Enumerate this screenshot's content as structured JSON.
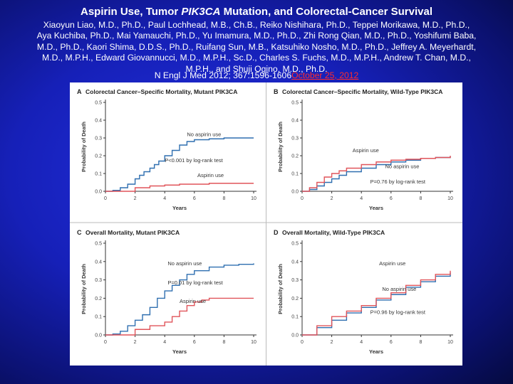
{
  "header": {
    "title_part1": "Aspirin Use, Tumor ",
    "title_gene": "PIK3CA",
    "title_part2": " Mutation, and Colorectal-Cancer Survival",
    "authors": "Xiaoyun Liao, M.D., Ph.D., Paul Lochhead, M.B., Ch.B., Reiko Nishihara, Ph.D., Teppei Morikawa, M.D., Ph.D., Aya Kuchiba, Ph.D., Mai Yamauchi, Ph.D., Yu Imamura, M.D., Ph.D., Zhi Rong Qian, M.D., Ph.D., Yoshifumi Baba, M.D., Ph.D., Kaori Shima, D.D.S., Ph.D., Ruifang Sun, M.B., Katsuhiko Nosho, M.D., Ph.D., Jeffrey A. Meyerhardt, M.D., M.P.H., Edward Giovannucci, M.D., M.P.H., Sc.D., Charles S. Fuchs, M.D., M.P.H., Andrew T. Chan, M.D., M.P.H., and Shuji Ogino, M.D., Ph.D.",
    "citation": "N Engl J Med 2012; 367:1596-1606",
    "citation_date": "October 25, 2012"
  },
  "colors": {
    "no_aspirin": "#2f6fb0",
    "aspirin": "#e0545a",
    "axis": "#333333",
    "title_text": "#ffffff",
    "link": "#ff2b2b"
  },
  "chart_data": [
    {
      "type": "line",
      "letter": "A",
      "title": "Colorectal Cancer–Specific Mortality, Mutant PIK3CA",
      "xlabel": "Years",
      "ylabel": "Probability of Death",
      "xlim": [
        0,
        10
      ],
      "ylim": [
        0,
        0.5
      ],
      "xticks": [
        0,
        2,
        4,
        6,
        8,
        10
      ],
      "yticks": [
        0.0,
        0.1,
        0.2,
        0.3,
        0.4,
        0.5
      ],
      "series": [
        {
          "name": "No aspirin use",
          "x": [
            0,
            0.5,
            1,
            1.5,
            2,
            2.3,
            2.6,
            3,
            3.3,
            3.6,
            4,
            4.5,
            5,
            5.5,
            6,
            7,
            8,
            9,
            10
          ],
          "y": [
            0,
            0.005,
            0.02,
            0.04,
            0.07,
            0.09,
            0.11,
            0.13,
            0.15,
            0.17,
            0.2,
            0.23,
            0.26,
            0.28,
            0.29,
            0.295,
            0.3,
            0.3,
            0.3
          ]
        },
        {
          "name": "Aspirin use",
          "x": [
            0,
            1,
            1.8,
            2,
            3,
            4,
            5,
            6,
            7,
            8,
            9,
            10
          ],
          "y": [
            0,
            0,
            0,
            0.02,
            0.03,
            0.035,
            0.04,
            0.04,
            0.045,
            0.045,
            0.045,
            0.045
          ]
        }
      ],
      "annotations": [
        "No aspirin use",
        "P<0.001 by log-rank test",
        "Aspirin use"
      ]
    },
    {
      "type": "line",
      "letter": "B",
      "title": "Colorectal Cancer–Specific Mortality, Wild-Type PIK3CA",
      "xlabel": "Years",
      "ylabel": "Probability of Death",
      "xlim": [
        0,
        10
      ],
      "ylim": [
        0,
        0.5
      ],
      "xticks": [
        0,
        2,
        4,
        6,
        8,
        10
      ],
      "yticks": [
        0.0,
        0.1,
        0.2,
        0.3,
        0.4,
        0.5
      ],
      "series": [
        {
          "name": "No aspirin use",
          "x": [
            0,
            0.5,
            1,
            1.5,
            2,
            2.5,
            3,
            4,
            5,
            6,
            7,
            8,
            9,
            10
          ],
          "y": [
            0,
            0.01,
            0.03,
            0.05,
            0.07,
            0.09,
            0.11,
            0.13,
            0.15,
            0.165,
            0.175,
            0.185,
            0.19,
            0.195
          ]
        },
        {
          "name": "Aspirin use",
          "x": [
            0,
            0.5,
            1,
            1.5,
            2,
            2.5,
            3,
            4,
            5,
            6,
            7,
            8,
            9,
            10
          ],
          "y": [
            0,
            0.02,
            0.05,
            0.08,
            0.1,
            0.115,
            0.13,
            0.15,
            0.165,
            0.175,
            0.18,
            0.185,
            0.19,
            0.2
          ]
        }
      ],
      "annotations": [
        "Aspirin use",
        "No aspirin use",
        "P=0.76 by log-rank test"
      ]
    },
    {
      "type": "line",
      "letter": "C",
      "title": "Overall Mortality, Mutant PIK3CA",
      "xlabel": "Years",
      "ylabel": "Probability of Death",
      "xlim": [
        0,
        10
      ],
      "ylim": [
        0,
        0.5
      ],
      "xticks": [
        0,
        2,
        4,
        6,
        8,
        10
      ],
      "yticks": [
        0.0,
        0.1,
        0.2,
        0.3,
        0.4,
        0.5
      ],
      "series": [
        {
          "name": "No aspirin use",
          "x": [
            0,
            0.5,
            1,
            1.5,
            2,
            2.5,
            3,
            3.5,
            4,
            4.5,
            5,
            5.5,
            6,
            7,
            8,
            9,
            10
          ],
          "y": [
            0,
            0.005,
            0.02,
            0.05,
            0.08,
            0.11,
            0.15,
            0.2,
            0.24,
            0.27,
            0.3,
            0.33,
            0.35,
            0.37,
            0.38,
            0.385,
            0.39
          ]
        },
        {
          "name": "Aspirin use",
          "x": [
            0,
            1,
            2,
            3,
            4,
            4.5,
            5,
            5.5,
            6,
            6.5,
            7,
            8,
            9,
            10
          ],
          "y": [
            0,
            0,
            0.03,
            0.05,
            0.07,
            0.1,
            0.13,
            0.16,
            0.18,
            0.19,
            0.2,
            0.2,
            0.2,
            0.2
          ]
        }
      ],
      "annotations": [
        "No aspirin use",
        "P=0.01 by log-rank test",
        "Aspirin use"
      ]
    },
    {
      "type": "line",
      "letter": "D",
      "title": "Overall Mortality, Wild-Type PIK3CA",
      "xlabel": "Years",
      "ylabel": "Probability of Death",
      "xlim": [
        0,
        10
      ],
      "ylim": [
        0,
        0.5
      ],
      "xticks": [
        0,
        2,
        4,
        6,
        8,
        10
      ],
      "yticks": [
        0.0,
        0.1,
        0.2,
        0.3,
        0.4,
        0.5
      ],
      "series": [
        {
          "name": "No aspirin use",
          "x": [
            0,
            1,
            2,
            3,
            4,
            5,
            6,
            7,
            8,
            9,
            10
          ],
          "y": [
            0,
            0.04,
            0.08,
            0.12,
            0.15,
            0.19,
            0.22,
            0.26,
            0.29,
            0.32,
            0.34
          ]
        },
        {
          "name": "Aspirin use",
          "x": [
            0,
            1,
            2,
            3,
            4,
            5,
            6,
            7,
            8,
            9,
            10
          ],
          "y": [
            0,
            0.05,
            0.1,
            0.13,
            0.16,
            0.2,
            0.23,
            0.27,
            0.3,
            0.33,
            0.35
          ]
        }
      ],
      "annotations": [
        "Aspirin use",
        "No aspirin use",
        "P=0.96 by log-rank test"
      ]
    }
  ]
}
